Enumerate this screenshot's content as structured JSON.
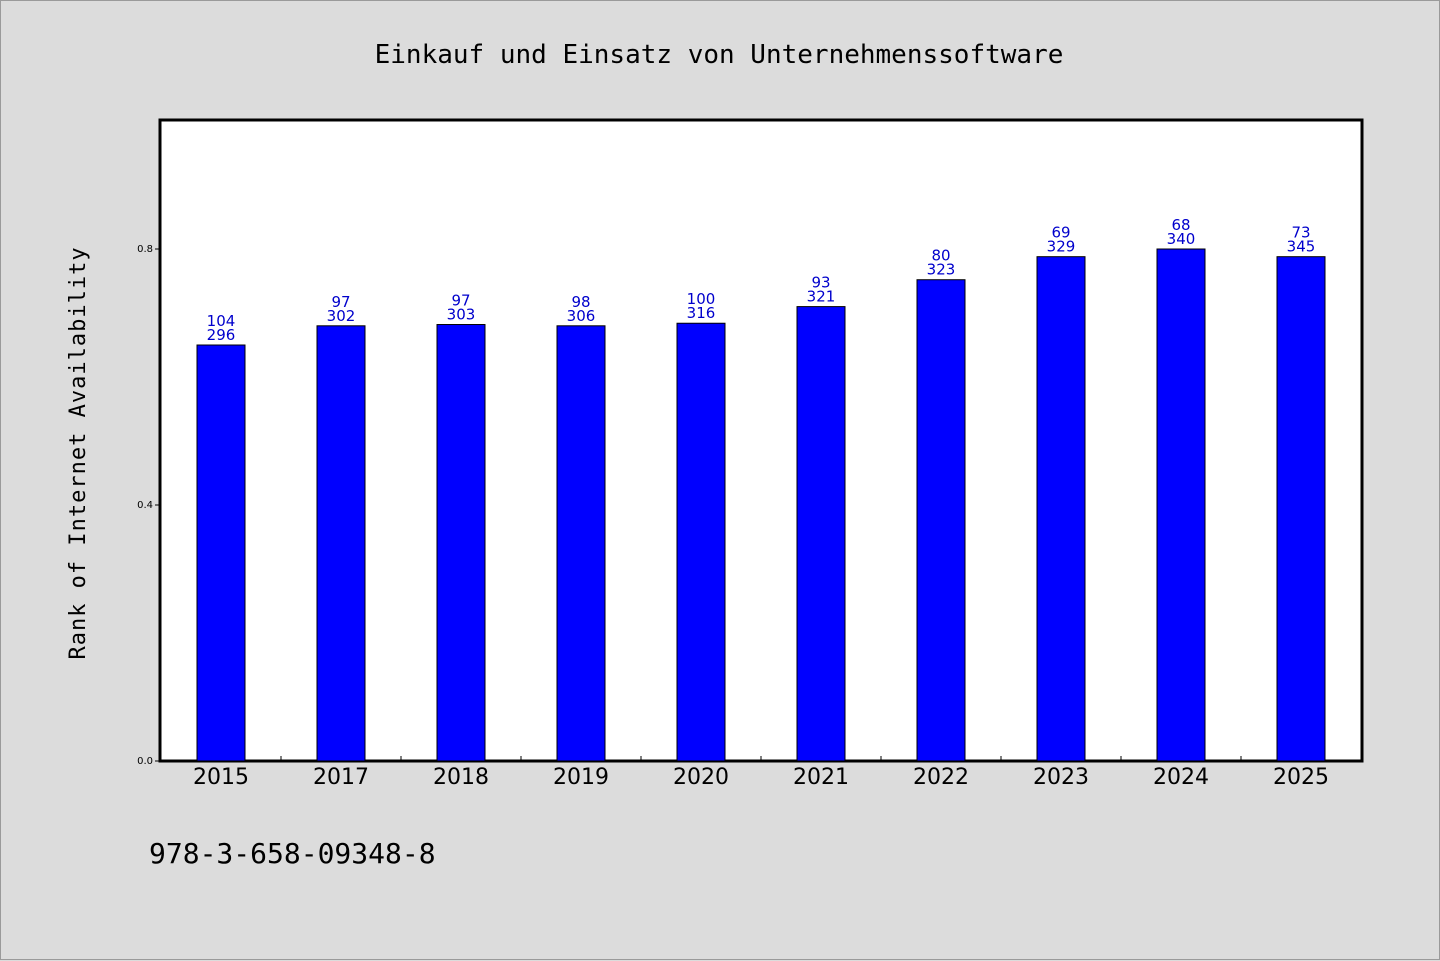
{
  "chart_data": {
    "type": "bar",
    "title": "Einkauf und Einsatz von Unternehmenssoftware",
    "ylabel": "Rank of Internet Availability",
    "xlabel": "",
    "ylim": [
      0,
      1.0
    ],
    "yticks": [
      "0.0",
      "0.4",
      "0.8"
    ],
    "grid": false,
    "categories": [
      "2015",
      "2017",
      "2018",
      "2019",
      "2020",
      "2021",
      "2022",
      "2023",
      "2024",
      "2025"
    ],
    "values": [
      0.65,
      0.68,
      0.682,
      0.68,
      0.684,
      0.71,
      0.752,
      0.788,
      0.8,
      0.788
    ],
    "bar_labels_top": [
      "104",
      "97",
      "97",
      "98",
      "100",
      "93",
      "80",
      "69",
      "68",
      "73"
    ],
    "bar_labels_bottom": [
      "296",
      "302",
      "303",
      "306",
      "316",
      "321",
      "323",
      "329",
      "340",
      "345"
    ],
    "bar_color": "#0000ff",
    "label_color": "#0000cc"
  },
  "footer": {
    "isbn": "978-3-658-09348-8"
  }
}
